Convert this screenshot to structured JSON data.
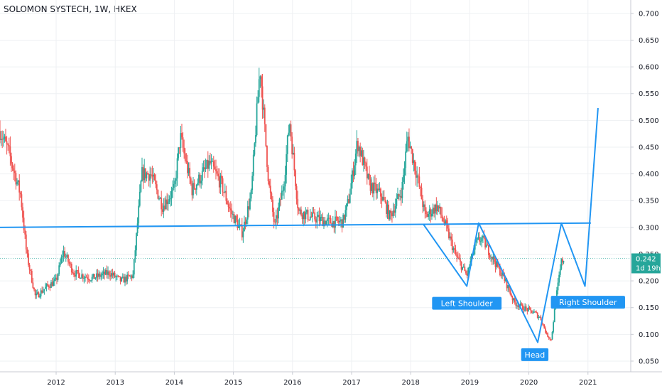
{
  "title": "SOLOMON SYSTECH, 1W, HKEX",
  "colors": {
    "up": "#26a69a",
    "down": "#ef5350",
    "line": "#2196f3",
    "last_price_bg": "#26a69a"
  },
  "chart_data": {
    "type": "candlestick",
    "title": "SOLOMON SYSTECH, 1W, HKEX",
    "x_range": [
      2011.05,
      2021.7
    ],
    "ylim": [
      0.03,
      0.725
    ],
    "x_tick_labels": [
      "2012",
      "2013",
      "2014",
      "2015",
      "2016",
      "2017",
      "2018",
      "2019",
      "2020",
      "2021"
    ],
    "y_tick_labels": [
      "0.050",
      "0.100",
      "0.150",
      "0.200",
      "0.250",
      "0.300",
      "0.350",
      "0.400",
      "0.450",
      "0.500",
      "0.550",
      "0.600",
      "0.650",
      "0.700"
    ],
    "last_price": "0.242",
    "countdown": "1d 19h",
    "price_path": [
      [
        2011.05,
        0.48
      ],
      [
        2011.2,
        0.44
      ],
      [
        2011.4,
        0.36
      ],
      [
        2011.5,
        0.25
      ],
      [
        2011.65,
        0.17
      ],
      [
        2011.85,
        0.19
      ],
      [
        2012.0,
        0.2
      ],
      [
        2012.12,
        0.255
      ],
      [
        2012.3,
        0.215
      ],
      [
        2012.6,
        0.205
      ],
      [
        2012.9,
        0.215
      ],
      [
        2013.1,
        0.2
      ],
      [
        2013.3,
        0.21
      ],
      [
        2013.45,
        0.4
      ],
      [
        2013.6,
        0.4
      ],
      [
        2013.8,
        0.34
      ],
      [
        2014.0,
        0.37
      ],
      [
        2014.1,
        0.47
      ],
      [
        2014.3,
        0.37
      ],
      [
        2014.6,
        0.42
      ],
      [
        2014.8,
        0.38
      ],
      [
        2014.95,
        0.33
      ],
      [
        2015.15,
        0.29
      ],
      [
        2015.3,
        0.36
      ],
      [
        2015.45,
        0.6
      ],
      [
        2015.6,
        0.38
      ],
      [
        2015.7,
        0.3
      ],
      [
        2015.85,
        0.38
      ],
      [
        2015.95,
        0.5
      ],
      [
        2016.1,
        0.33
      ],
      [
        2016.3,
        0.32
      ],
      [
        2016.6,
        0.31
      ],
      [
        2016.85,
        0.31
      ],
      [
        2016.95,
        0.35
      ],
      [
        2017.1,
        0.46
      ],
      [
        2017.3,
        0.38
      ],
      [
        2017.5,
        0.36
      ],
      [
        2017.65,
        0.32
      ],
      [
        2017.85,
        0.37
      ],
      [
        2017.95,
        0.47
      ],
      [
        2018.1,
        0.4
      ],
      [
        2018.25,
        0.32
      ],
      [
        2018.45,
        0.34
      ],
      [
        2018.6,
        0.3
      ],
      [
        2018.75,
        0.25
      ],
      [
        2018.95,
        0.21
      ],
      [
        2019.1,
        0.27
      ],
      [
        2019.2,
        0.28
      ],
      [
        2019.4,
        0.24
      ],
      [
        2019.6,
        0.2
      ],
      [
        2019.75,
        0.16
      ],
      [
        2019.9,
        0.15
      ],
      [
        2020.1,
        0.14
      ],
      [
        2020.2,
        0.13
      ],
      [
        2020.3,
        0.1
      ],
      [
        2020.38,
        0.09
      ],
      [
        2020.45,
        0.16
      ],
      [
        2020.55,
        0.235
      ],
      [
        2020.6,
        0.242
      ]
    ],
    "annotations": {
      "neckline": [
        [
          2011.05,
          0.3
        ],
        [
          2021.05,
          0.308
        ]
      ],
      "pattern_line": [
        [
          2018.22,
          0.305
        ],
        [
          2018.95,
          0.19
        ],
        [
          2019.15,
          0.308
        ],
        [
          2020.15,
          0.085
        ],
        [
          2020.55,
          0.308
        ],
        [
          2020.95,
          0.19
        ],
        [
          2021.17,
          0.523
        ]
      ],
      "labels": [
        {
          "id": "left-shoulder",
          "text": "Left Shoulder",
          "x": 2018.95,
          "y": 0.158
        },
        {
          "id": "head",
          "text": "Head",
          "x": 2020.1,
          "y": 0.062
        },
        {
          "id": "right-shoulder",
          "text": "Right Shoulder",
          "x": 2021.0,
          "y": 0.16
        }
      ]
    }
  }
}
